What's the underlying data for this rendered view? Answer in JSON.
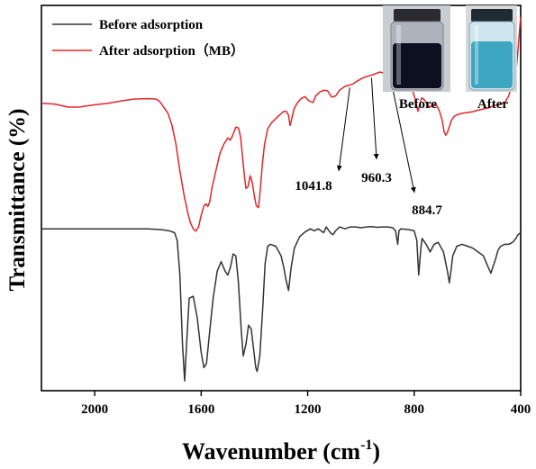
{
  "chart_data": {
    "type": "line",
    "xlabel": "Wavenumber (cm",
    "xlabel_sup": "-1",
    "xlabel_end": ")",
    "ylabel": "Transmittance (%)",
    "xlim": [
      2200,
      400
    ],
    "x_reversed": true,
    "x_ticks": [
      {
        "value": 2000,
        "label": "2000"
      },
      {
        "value": 1600,
        "label": "1600"
      },
      {
        "value": 1200,
        "label": "1200"
      },
      {
        "value": 800,
        "label": "800"
      },
      {
        "value": 400,
        "label": "400"
      }
    ],
    "y_ticks_shown": false,
    "ylim": [
      0,
      100
    ],
    "grid": false,
    "legend_position": "top-left",
    "series": [
      {
        "name": "Before adsorption",
        "color": "#333333",
        "points": [
          [
            2200,
            42
          ],
          [
            2100,
            42
          ],
          [
            2000,
            42
          ],
          [
            1900,
            42
          ],
          [
            1800,
            42
          ],
          [
            1750,
            41.8
          ],
          [
            1720,
            41.5
          ],
          [
            1700,
            41
          ],
          [
            1690,
            39
          ],
          [
            1680,
            30
          ],
          [
            1670,
            12
          ],
          [
            1662,
            2.5
          ],
          [
            1655,
            12
          ],
          [
            1645,
            24
          ],
          [
            1630,
            24.5
          ],
          [
            1615,
            19
          ],
          [
            1600,
            10
          ],
          [
            1590,
            6
          ],
          [
            1580,
            7
          ],
          [
            1570,
            14
          ],
          [
            1555,
            24
          ],
          [
            1540,
            31
          ],
          [
            1525,
            33.5
          ],
          [
            1510,
            31
          ],
          [
            1500,
            30
          ],
          [
            1490,
            32
          ],
          [
            1480,
            35.5
          ],
          [
            1470,
            35
          ],
          [
            1460,
            28
          ],
          [
            1450,
            16
          ],
          [
            1442,
            9
          ],
          [
            1432,
            12
          ],
          [
            1422,
            17
          ],
          [
            1412,
            16
          ],
          [
            1402,
            10
          ],
          [
            1395,
            6
          ],
          [
            1390,
            5
          ],
          [
            1380,
            9
          ],
          [
            1370,
            20
          ],
          [
            1360,
            33
          ],
          [
            1350,
            37.5
          ],
          [
            1340,
            38
          ],
          [
            1320,
            37.5
          ],
          [
            1300,
            35
          ],
          [
            1290,
            32
          ],
          [
            1282,
            29
          ],
          [
            1272,
            26
          ],
          [
            1262,
            32
          ],
          [
            1250,
            37
          ],
          [
            1230,
            40
          ],
          [
            1210,
            41.2
          ],
          [
            1190,
            42
          ],
          [
            1175,
            41.5
          ],
          [
            1160,
            42
          ],
          [
            1140,
            41
          ],
          [
            1130,
            42.5
          ],
          [
            1115,
            41
          ],
          [
            1105,
            40.5
          ],
          [
            1095,
            41.5
          ],
          [
            1080,
            42.5
          ],
          [
            1060,
            42
          ],
          [
            1040,
            42.5
          ],
          [
            1020,
            42.5
          ],
          [
            1000,
            42.3
          ],
          [
            980,
            42.5
          ],
          [
            960,
            42.6
          ],
          [
            940,
            42.4
          ],
          [
            920,
            42.5
          ],
          [
            900,
            42.5
          ],
          [
            880,
            42.3
          ],
          [
            870,
            41.5
          ],
          [
            862,
            38
          ],
          [
            857,
            41.5
          ],
          [
            850,
            42
          ],
          [
            820,
            41.8
          ],
          [
            800,
            41.5
          ],
          [
            790,
            39
          ],
          [
            783,
            30
          ],
          [
            775,
            37
          ],
          [
            770,
            39.5
          ],
          [
            755,
            38
          ],
          [
            740,
            36
          ],
          [
            725,
            38
          ],
          [
            710,
            38.5
          ],
          [
            690,
            36
          ],
          [
            675,
            31
          ],
          [
            668,
            28
          ],
          [
            662,
            31
          ],
          [
            655,
            35
          ],
          [
            640,
            37.5
          ],
          [
            620,
            38
          ],
          [
            600,
            37.5
          ],
          [
            580,
            37
          ],
          [
            560,
            36
          ],
          [
            540,
            35
          ],
          [
            525,
            32.5
          ],
          [
            512,
            30.5
          ],
          [
            505,
            32
          ],
          [
            495,
            34
          ],
          [
            485,
            36.5
          ],
          [
            475,
            37.5
          ],
          [
            460,
            38
          ],
          [
            445,
            38
          ],
          [
            430,
            38.5
          ],
          [
            418,
            39.5
          ],
          [
            410,
            40.5
          ],
          [
            400,
            41
          ]
        ]
      },
      {
        "name": "After adsorption（MB）",
        "color": "#e0262a",
        "points": [
          [
            2200,
            74.6
          ],
          [
            2150,
            74.4
          ],
          [
            2100,
            73.6
          ],
          [
            2060,
            73.6
          ],
          [
            2000,
            74.2
          ],
          [
            1950,
            74.6
          ],
          [
            1900,
            75.2
          ],
          [
            1850,
            75.7
          ],
          [
            1800,
            75.8
          ],
          [
            1770,
            75.7
          ],
          [
            1760,
            75.3
          ],
          [
            1750,
            74.5
          ],
          [
            1740,
            73.5
          ],
          [
            1725,
            72
          ],
          [
            1710,
            69
          ],
          [
            1695,
            64
          ],
          [
            1680,
            57
          ],
          [
            1665,
            51
          ],
          [
            1650,
            46
          ],
          [
            1640,
            43.5
          ],
          [
            1630,
            42
          ],
          [
            1620,
            41.4
          ],
          [
            1610,
            42.5
          ],
          [
            1600,
            45.5
          ],
          [
            1590,
            48
          ],
          [
            1582,
            48.5
          ],
          [
            1575,
            47.8
          ],
          [
            1568,
            49
          ],
          [
            1560,
            52.5
          ],
          [
            1545,
            57
          ],
          [
            1530,
            61.5
          ],
          [
            1515,
            64
          ],
          [
            1500,
            65.6
          ],
          [
            1490,
            65
          ],
          [
            1480,
            66.6
          ],
          [
            1470,
            68.4
          ],
          [
            1460,
            68.2
          ],
          [
            1452,
            65.8
          ],
          [
            1445,
            61
          ],
          [
            1438,
            56
          ],
          [
            1432,
            52.5
          ],
          [
            1424,
            53
          ],
          [
            1416,
            55.8
          ],
          [
            1408,
            54
          ],
          [
            1400,
            50.5
          ],
          [
            1393,
            48
          ],
          [
            1385,
            47.5
          ],
          [
            1378,
            52
          ],
          [
            1370,
            59
          ],
          [
            1362,
            64
          ],
          [
            1350,
            68
          ],
          [
            1335,
            69.6
          ],
          [
            1320,
            70.6
          ],
          [
            1305,
            71.6
          ],
          [
            1290,
            72.5
          ],
          [
            1280,
            72.5
          ],
          [
            1272,
            71.5
          ],
          [
            1266,
            68.8
          ],
          [
            1260,
            70.5
          ],
          [
            1252,
            73
          ],
          [
            1240,
            74.6
          ],
          [
            1225,
            75.8
          ],
          [
            1210,
            76.3
          ],
          [
            1195,
            75.2
          ],
          [
            1180,
            74.8
          ],
          [
            1170,
            76.5
          ],
          [
            1155,
            77.5
          ],
          [
            1140,
            78
          ],
          [
            1125,
            77.8
          ],
          [
            1110,
            76.2
          ],
          [
            1095,
            76.5
          ],
          [
            1080,
            78
          ],
          [
            1060,
            79
          ],
          [
            1045,
            79.3
          ],
          [
            1030,
            79.6
          ],
          [
            1015,
            80.3
          ],
          [
            1000,
            80.9
          ],
          [
            985,
            81.4
          ],
          [
            970,
            81.7
          ],
          [
            955,
            82
          ],
          [
            940,
            82.4
          ],
          [
            928,
            82.7
          ],
          [
            918,
            82.5
          ],
          [
            910,
            82
          ],
          [
            900,
            81.6
          ],
          [
            890,
            80.8
          ],
          [
            880,
            80
          ],
          [
            870,
            80.2
          ],
          [
            862,
            81
          ],
          [
            855,
            81.5
          ],
          [
            848,
            81.7
          ],
          [
            840,
            81.3
          ],
          [
            825,
            80.3
          ],
          [
            810,
            78.5
          ],
          [
            800,
            76.6
          ],
          [
            792,
            74.5
          ],
          [
            786,
            72.5
          ],
          [
            780,
            74
          ],
          [
            772,
            76
          ],
          [
            762,
            75.5
          ],
          [
            752,
            74.5
          ],
          [
            742,
            73.5
          ],
          [
            735,
            74
          ],
          [
            725,
            74
          ],
          [
            715,
            74
          ],
          [
            705,
            72.5
          ],
          [
            695,
            70.3
          ],
          [
            688,
            67.3
          ],
          [
            682,
            66.3
          ],
          [
            676,
            66.9
          ],
          [
            668,
            68.5
          ],
          [
            660,
            70.2
          ],
          [
            650,
            71.2
          ],
          [
            640,
            71.6
          ],
          [
            620,
            72
          ],
          [
            600,
            72.2
          ],
          [
            580,
            72.4
          ],
          [
            560,
            72.8
          ],
          [
            540,
            73.1
          ],
          [
            520,
            73.4
          ],
          [
            500,
            74
          ],
          [
            480,
            74.3
          ],
          [
            460,
            74.8
          ],
          [
            445,
            76.5
          ],
          [
            432,
            79.5
          ],
          [
            424,
            80.3
          ],
          [
            418,
            82.5
          ],
          [
            412,
            87
          ],
          [
            406,
            92
          ],
          [
            400,
            97
          ]
        ]
      }
    ],
    "annotations": [
      {
        "label": "1041.8",
        "x": 1041.8
      },
      {
        "label": "960.3",
        "x": 960.3
      },
      {
        "label": "884.7",
        "x": 884.7
      }
    ]
  },
  "inset_photos": [
    {
      "label": "Before",
      "liquid_color": "#0c1020"
    },
    {
      "label": "After",
      "liquid_color": "#3fa6c2"
    }
  ]
}
